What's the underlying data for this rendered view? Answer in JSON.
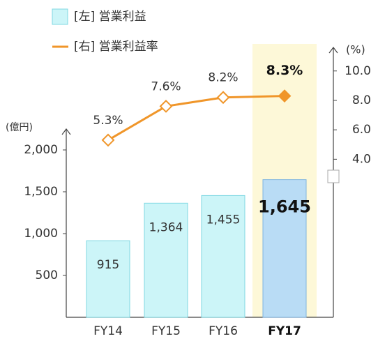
{
  "chart_data": {
    "type": "bar_line",
    "categories": [
      "FY14",
      "FY15",
      "FY16",
      "FY17"
    ],
    "highlight": 3,
    "series": [
      {
        "name": "[左] 営業利益",
        "type": "bar",
        "color": "#ccf5f8",
        "highlight_color": "#b9dcf5",
        "values": [
          915,
          1364,
          1455,
          1645
        ],
        "value_labels": [
          "915",
          "1,364",
          "1,455",
          "1,645"
        ]
      },
      {
        "name": "[右] 営業利益率",
        "type": "line",
        "axis": "y2",
        "color": "#f0962a",
        "values": [
          5.3,
          7.6,
          8.2,
          8.3
        ],
        "value_labels": [
          "5.3%",
          "7.6%",
          "8.2%",
          "8.3%"
        ]
      }
    ],
    "y_unit": "(億円)",
    "y2_unit": "(%)",
    "ylim": [
      0,
      2250
    ],
    "yticks": [
      {
        "value": 500,
        "label": "500"
      },
      {
        "value": 1000,
        "label": "1,000"
      },
      {
        "value": 1500,
        "label": "1,500"
      },
      {
        "value": 2000,
        "label": "2,000"
      }
    ],
    "y2lim": [
      2.5,
      11.6
    ],
    "y2ticks": [
      {
        "value": 4,
        "label": "4.0"
      },
      {
        "value": 6,
        "label": "6.0"
      },
      {
        "value": 8,
        "label": "8.0"
      },
      {
        "value": 10,
        "label": "10.0"
      }
    ],
    "highlight_band_color": "#fdf8d8"
  }
}
